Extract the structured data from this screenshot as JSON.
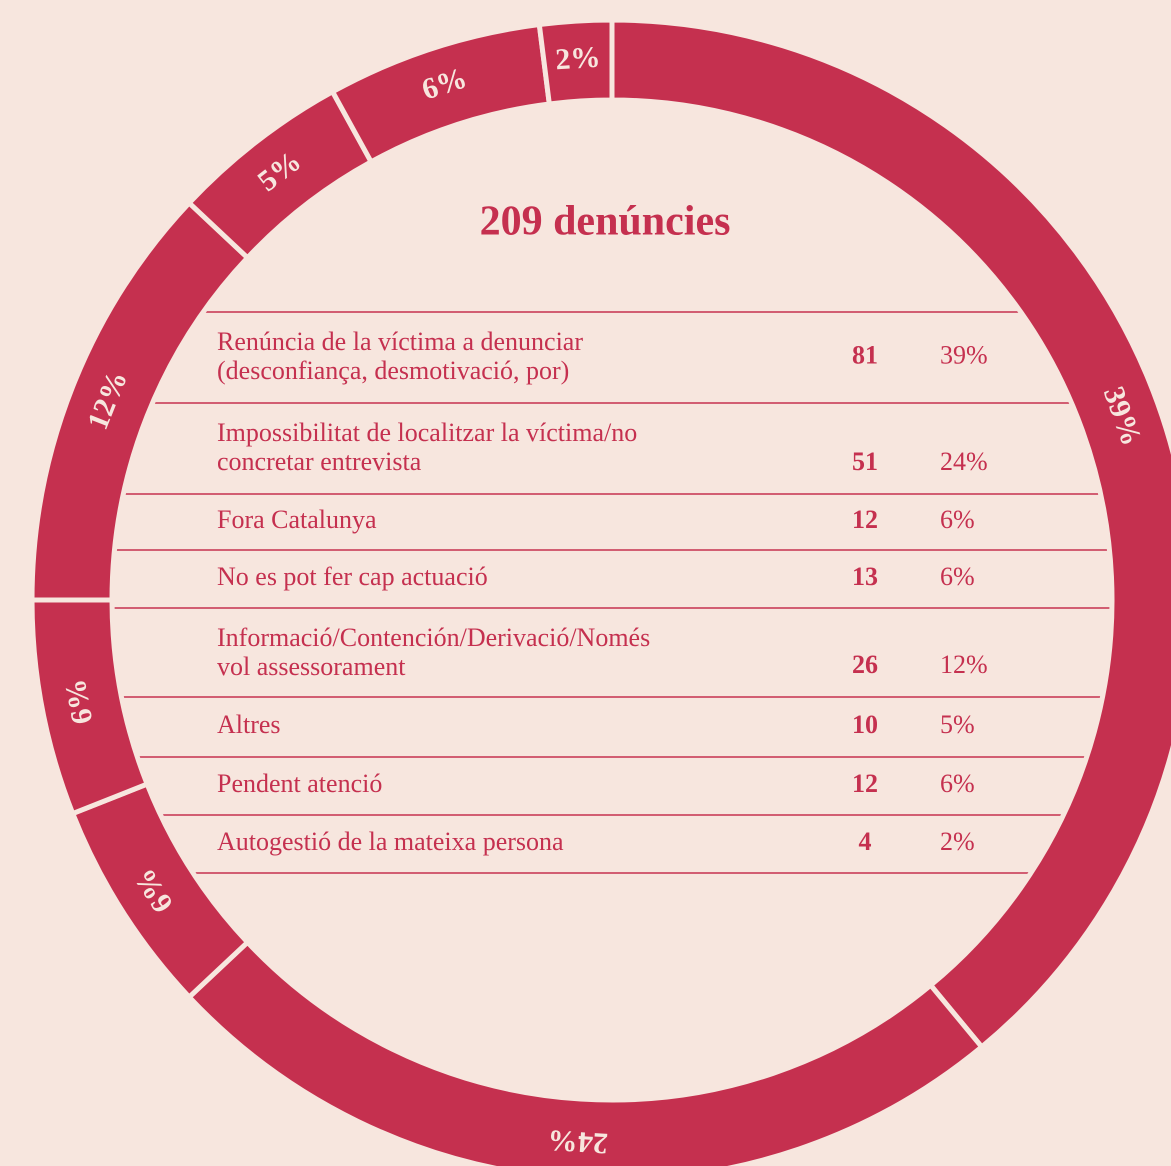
{
  "chart_data": {
    "type": "donut",
    "title": "209 denúncies",
    "categories": [
      [
        "Renúncia de la víctima a denunciar",
        "(desconfiança, desmotivació, por)"
      ],
      [
        "Impossibilitat de localitzar la víctima/no",
        "concretar entrevista"
      ],
      [
        "Fora Catalunya"
      ],
      [
        "No es pot fer cap actuació"
      ],
      [
        "Informació/Contención/Derivació/Només",
        "vol assessorament"
      ],
      [
        "Altres"
      ],
      [
        "Pendent atenció"
      ],
      [
        "Autogestió de la mateixa persona"
      ]
    ],
    "counts": [
      81,
      51,
      12,
      13,
      26,
      10,
      12,
      4
    ],
    "values": [
      39,
      24,
      6,
      6,
      12,
      5,
      6,
      2
    ],
    "value_labels": [
      "39%",
      "24%",
      "6%",
      "6%",
      "12%",
      "5%",
      "6%",
      "2%"
    ],
    "color": "#c5304f"
  }
}
